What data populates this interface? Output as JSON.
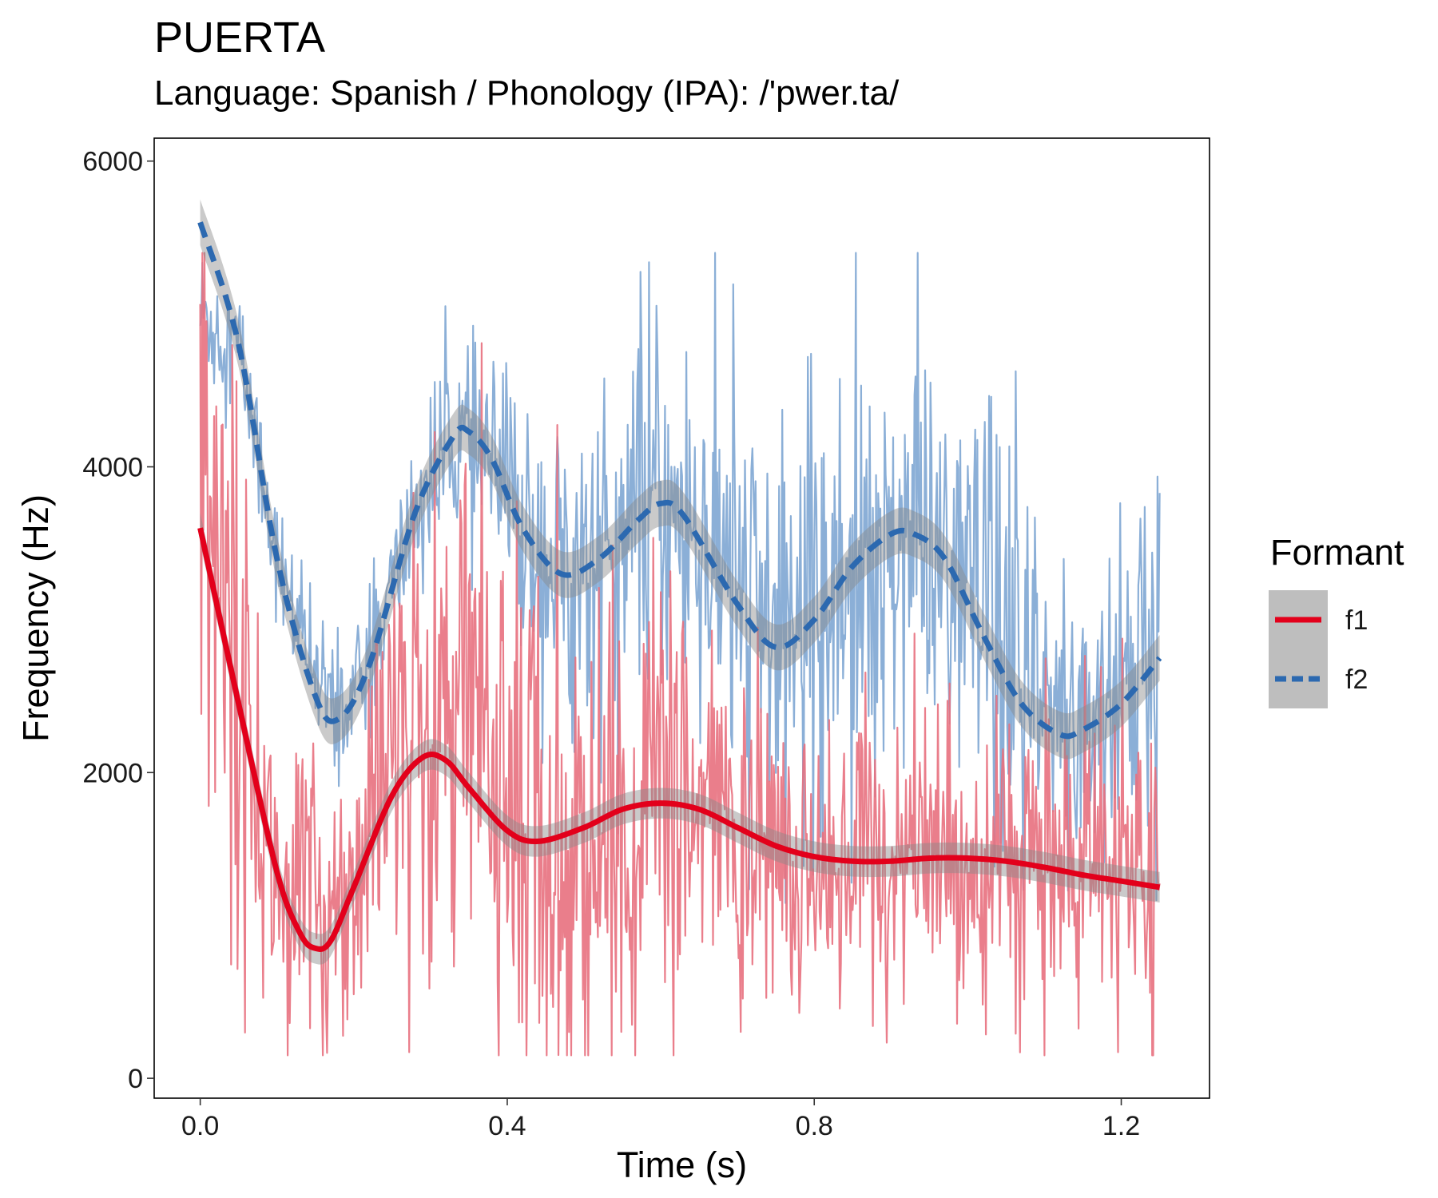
{
  "chart_data": {
    "type": "line",
    "title": "PUERTA",
    "subtitle": "Language: Spanish / Phonology (IPA): /'pwer.ta/",
    "xlabel": "Time (s)",
    "ylabel": "Frequency (Hz)",
    "xlim": [
      -0.06,
      1.315
    ],
    "ylim": [
      -130,
      6150
    ],
    "x_ticks": [
      0.0,
      0.4,
      0.8,
      1.2
    ],
    "x_tick_labels": [
      "0.0",
      "0.4",
      "0.8",
      "1.2"
    ],
    "y_ticks": [
      0,
      2000,
      4000,
      6000
    ],
    "y_tick_labels": [
      "0",
      "2000",
      "4000",
      "6000"
    ],
    "grid": false,
    "legend": {
      "title": "Formant",
      "position": "right",
      "entries": [
        "f1",
        "f2"
      ]
    },
    "series": [
      {
        "name": "f1",
        "color": "#E3001B",
        "raw_color": "#E8707E",
        "line_style": "solid",
        "smooth_x": [
          0.0,
          0.05,
          0.1,
          0.13,
          0.15,
          0.17,
          0.2,
          0.25,
          0.29,
          0.32,
          0.35,
          0.4,
          0.44,
          0.5,
          0.55,
          0.6,
          0.65,
          0.7,
          0.75,
          0.8,
          0.85,
          0.9,
          0.95,
          1.0,
          1.05,
          1.1,
          1.15,
          1.2,
          1.25
        ],
        "smooth_y": [
          3600,
          2450,
          1350,
          950,
          850,
          900,
          1250,
          1850,
          2100,
          2080,
          1900,
          1620,
          1550,
          1640,
          1760,
          1800,
          1760,
          1640,
          1520,
          1450,
          1420,
          1420,
          1440,
          1440,
          1420,
          1380,
          1330,
          1290,
          1250
        ],
        "band": 100,
        "raw_anchor_x": [
          0.0,
          0.02,
          0.05,
          0.08,
          0.1,
          0.15,
          0.2,
          0.25,
          0.3,
          0.35,
          0.4,
          0.45,
          0.5,
          0.55,
          0.6,
          0.65,
          0.7,
          0.8,
          0.9,
          1.0,
          1.1,
          1.2,
          1.25
        ],
        "raw_anchor_y": [
          4200,
          3600,
          2600,
          1700,
          1300,
          1000,
          1350,
          2000,
          2300,
          2350,
          1900,
          1400,
          1400,
          1600,
          1900,
          1700,
          1500,
          1450,
          1400,
          1420,
          1380,
          1300,
          1250
        ],
        "raw_spread_x": [
          0.0,
          0.05,
          0.1,
          0.2,
          0.3,
          0.4,
          0.6,
          0.8,
          1.0,
          1.25
        ],
        "raw_spread_y": [
          1000,
          850,
          450,
          550,
          900,
          850,
          750,
          450,
          450,
          500
        ]
      },
      {
        "name": "f2",
        "color": "#2C69B0",
        "raw_color": "#7EA6D3",
        "line_style": "dashed",
        "smooth_x": [
          0.0,
          0.05,
          0.1,
          0.15,
          0.18,
          0.22,
          0.28,
          0.33,
          0.35,
          0.38,
          0.42,
          0.47,
          0.52,
          0.57,
          0.6,
          0.63,
          0.7,
          0.75,
          0.8,
          0.85,
          0.9,
          0.93,
          0.97,
          1.02,
          1.07,
          1.12,
          1.15,
          1.2,
          1.25
        ],
        "smooth_y": [
          5600,
          4800,
          3400,
          2500,
          2350,
          2700,
          3700,
          4200,
          4230,
          4050,
          3600,
          3300,
          3400,
          3650,
          3760,
          3680,
          3100,
          2820,
          3000,
          3350,
          3560,
          3560,
          3400,
          2900,
          2450,
          2250,
          2280,
          2450,
          2750
        ],
        "band": 150,
        "raw_anchor_x": [
          0.0,
          0.05,
          0.1,
          0.15,
          0.18,
          0.22,
          0.28,
          0.33,
          0.38,
          0.42,
          0.47,
          0.52,
          0.6,
          0.7,
          0.75,
          0.8,
          0.9,
          0.97,
          1.07,
          1.12,
          1.2,
          1.25
        ],
        "raw_anchor_y": [
          5000,
          4800,
          3400,
          2600,
          2350,
          2700,
          3700,
          4200,
          4000,
          3600,
          3300,
          3400,
          3760,
          3200,
          2900,
          3100,
          3600,
          3400,
          2500,
          2300,
          2500,
          2800
        ],
        "raw_spread_x": [
          0.0,
          0.1,
          0.2,
          0.35,
          0.5,
          0.7,
          0.9,
          1.1,
          1.25
        ],
        "raw_spread_y": [
          250,
          200,
          200,
          350,
          550,
          650,
          750,
          650,
          550
        ]
      }
    ]
  }
}
